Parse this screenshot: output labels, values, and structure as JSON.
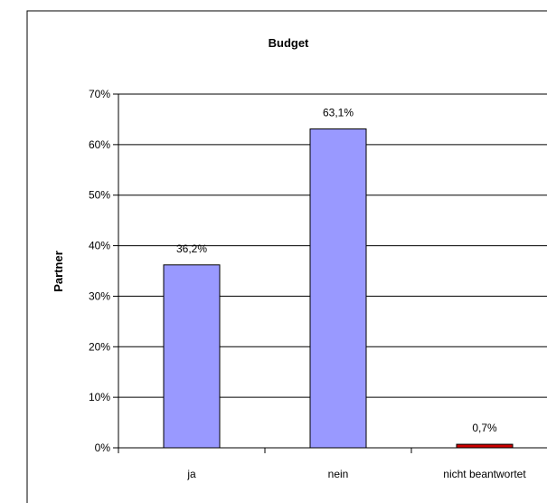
{
  "chart_data": {
    "type": "bar",
    "title": "Budget",
    "ylabel": "Partner",
    "xlabel": "",
    "categories": [
      "ja",
      "nein",
      "nicht beantwortet"
    ],
    "values": [
      36.2,
      63.1,
      0.7
    ],
    "data_labels": [
      "36,2%",
      "63,1%",
      "0,7%"
    ],
    "bar_colors": [
      "#9999ff",
      "#9999ff",
      "#cc0000"
    ],
    "ylim": [
      0,
      70
    ],
    "yticks": [
      0,
      10,
      20,
      30,
      40,
      50,
      60,
      70
    ],
    "ytick_labels": [
      "0%",
      "10%",
      "20%",
      "30%",
      "40%",
      "50%",
      "60%",
      "70%"
    ],
    "grid": true,
    "legend": "none"
  }
}
